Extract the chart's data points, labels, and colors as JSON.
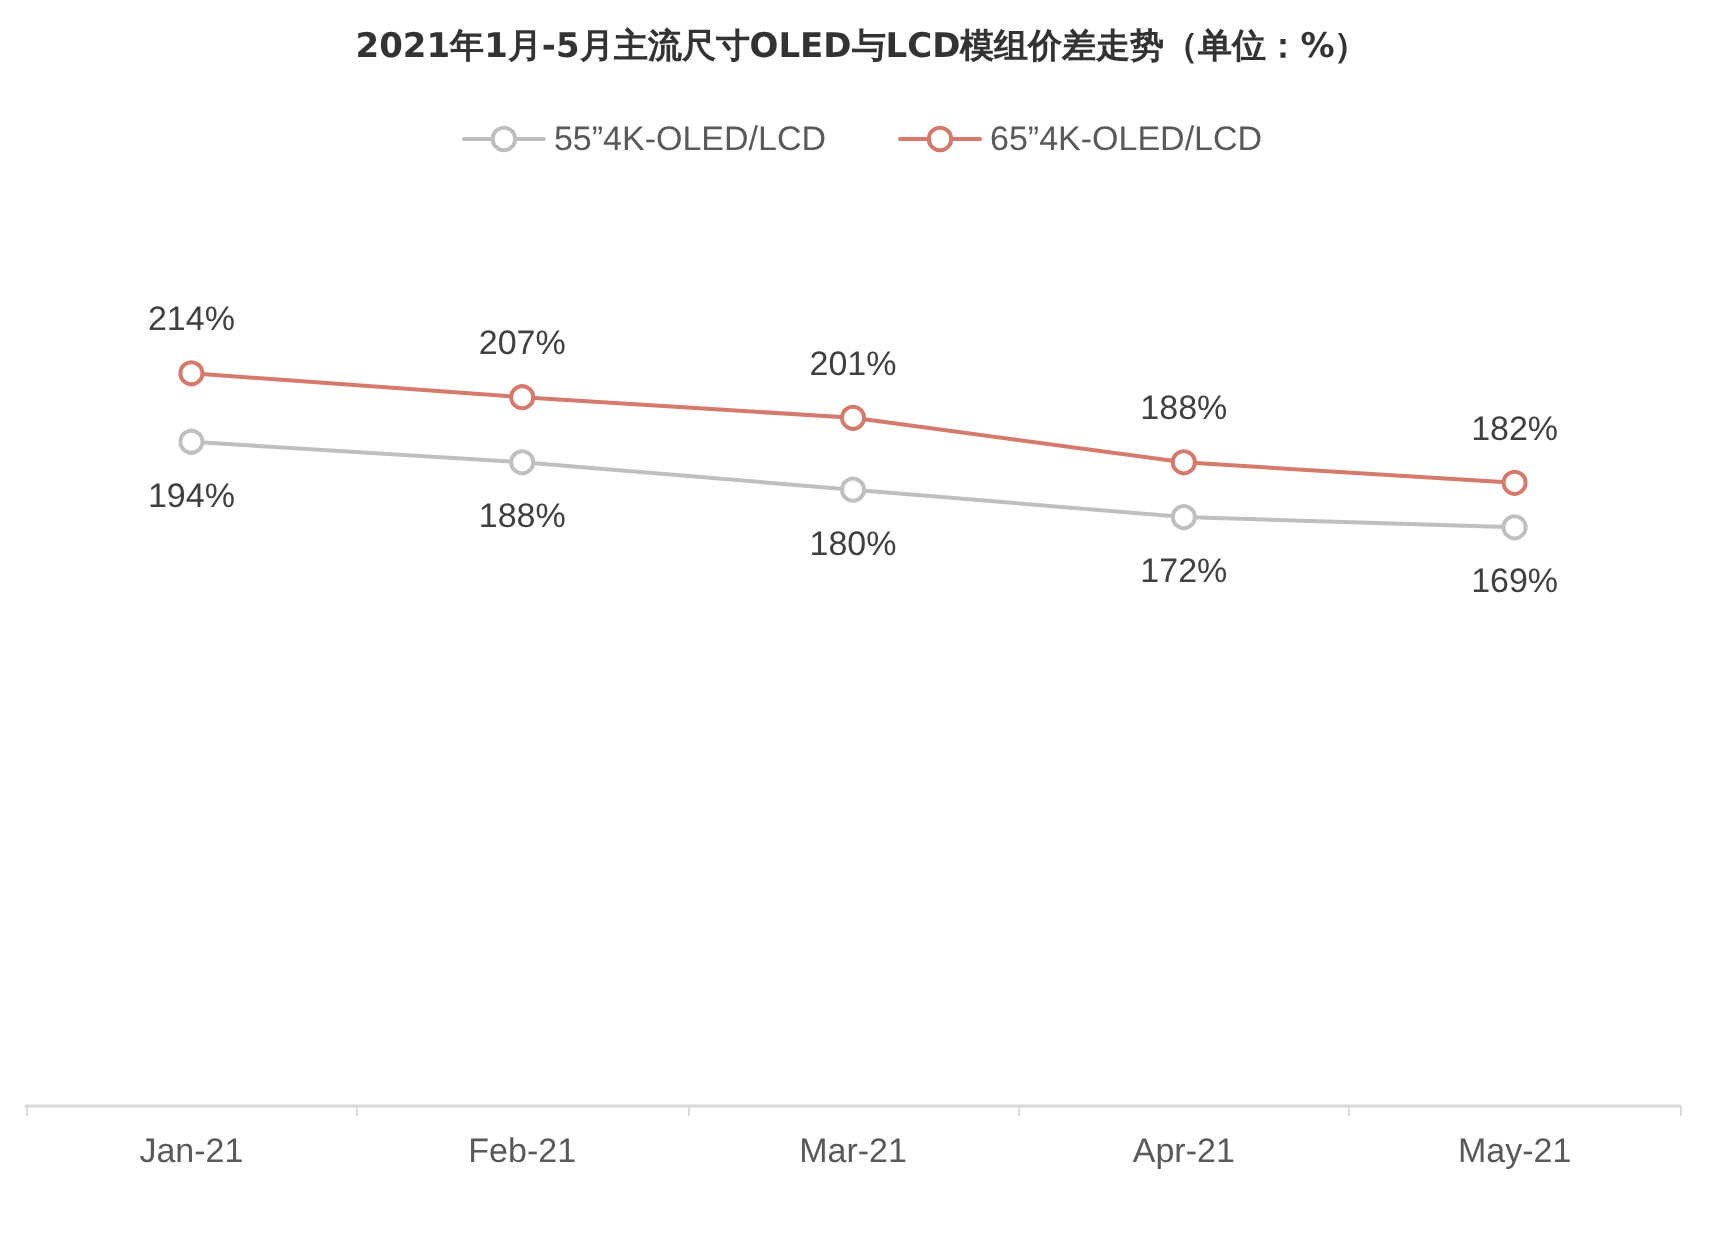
{
  "chart_data": {
    "type": "line",
    "title": "2021年1月-5月主流尺寸OLED与LCD模组价差走势（单位：%）",
    "categories": [
      "Jan-21",
      "Feb-21",
      "Mar-21",
      "Apr-21",
      "May-21"
    ],
    "series": [
      {
        "name": "55”4K-OLED/LCD",
        "color": "#bfbfbf",
        "values": [
          194,
          188,
          180,
          172,
          169
        ],
        "value_labels": [
          "194%",
          "188%",
          "180%",
          "172%",
          "169%"
        ]
      },
      {
        "name": "65”4K-OLED/LCD",
        "color": "#d4796b",
        "values": [
          214,
          207,
          201,
          188,
          182
        ],
        "value_labels": [
          "214%",
          "207%",
          "201%",
          "188%",
          "182%"
        ]
      }
    ],
    "marker": "circle",
    "legend": "top",
    "tick_labels": "x"
  }
}
